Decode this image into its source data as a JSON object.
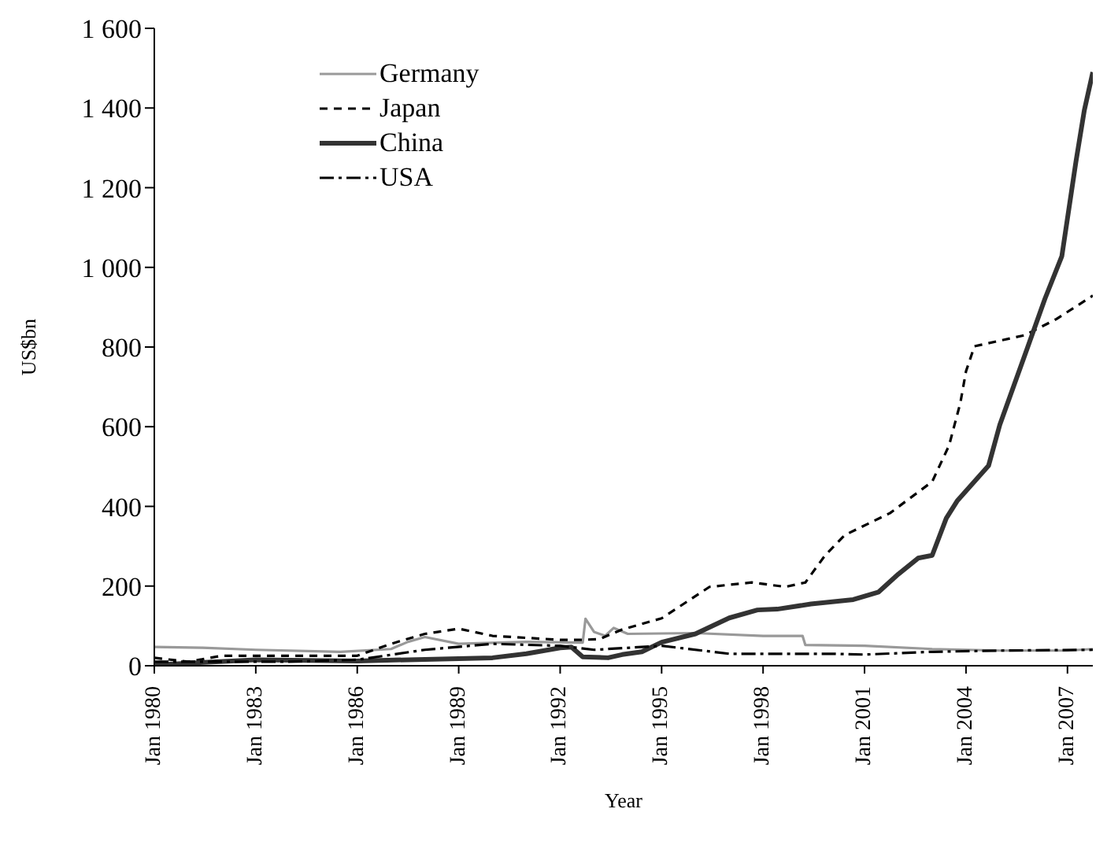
{
  "chart_data": {
    "type": "line",
    "xlabel": "Year",
    "ylabel": "US$bn",
    "xlim": [
      "1980-01",
      "2007-10"
    ],
    "xticks": [
      {
        "value": "1980-01",
        "label": "Jan 1980"
      },
      {
        "value": "1983-01",
        "label": "Jan 1983"
      },
      {
        "value": "1986-01",
        "label": "Jan 1986"
      },
      {
        "value": "1989-01",
        "label": "Jan 1989"
      },
      {
        "value": "1992-01",
        "label": "Jan 1992"
      },
      {
        "value": "1995-01",
        "label": "Jan 1995"
      },
      {
        "value": "1998-01",
        "label": "Jan 1998"
      },
      {
        "value": "2001-01",
        "label": "Jan 2001"
      },
      {
        "value": "2004-01",
        "label": "Jan 2004"
      },
      {
        "value": "2007-01",
        "label": "Jan 2007"
      }
    ],
    "ylim": [
      0,
      1600
    ],
    "yticks": [
      0,
      200,
      400,
      600,
      800,
      {
        "value": 1000,
        "label": "1 000"
      },
      {
        "value": 1200,
        "label": "1 200"
      },
      {
        "value": 1400,
        "label": "1 400"
      },
      {
        "value": 1600,
        "label": "1 600"
      }
    ],
    "grid": false,
    "legend": "top left",
    "marker": "none",
    "series": [
      {
        "name": "Germany",
        "color": "#999999",
        "line_style": "solid",
        "x": [
          "1980-01",
          "1981-06",
          "1983-01",
          "1985-07",
          "1987-01",
          "1987-07",
          "1988-01",
          "1989-01",
          "1991-01",
          "1992-09",
          "1992-10",
          "1993-01",
          "1993-05",
          "1993-08",
          "1994-01",
          "1996-01",
          "1998-01",
          "1999-03",
          "1999-04",
          "2001-01",
          "2003-01",
          "2005-01",
          "2007-01",
          "2007-10"
        ],
        "values": [
          47,
          45,
          40,
          35,
          42,
          60,
          72,
          55,
          60,
          58,
          118,
          85,
          75,
          95,
          80,
          82,
          75,
          75,
          52,
          50,
          42,
          38,
          38,
          42
        ]
      },
      {
        "name": "Japan",
        "color": "#000000",
        "line_style": "dashed",
        "x": [
          "1980-01",
          "1981-01",
          "1982-01",
          "1984-01",
          "1986-01",
          "1987-01",
          "1988-01",
          "1989-01",
          "1990-01",
          "1991-01",
          "1992-01",
          "1992-09",
          "1993-03",
          "1993-11",
          "1995-01",
          "1996-06",
          "1997-09",
          "1998-09",
          "1999-04",
          "1999-11",
          "2000-06",
          "2001-10",
          "2003-01",
          "2003-07",
          "2003-11",
          "2004-01",
          "2004-04",
          "2005-10",
          "2006-09",
          "2007-10"
        ],
        "values": [
          20,
          10,
          25,
          25,
          25,
          55,
          80,
          93,
          75,
          70,
          65,
          65,
          67,
          91,
          119,
          198,
          209,
          198,
          209,
          277,
          328,
          383,
          462,
          553,
          660,
          739,
          802,
          830,
          870,
          929
        ]
      },
      {
        "name": "China",
        "color": "#333333",
        "line_style": "solid",
        "x": [
          "1980-01",
          "1983-01",
          "1986-01",
          "1989-01",
          "1990-01",
          "1991-01",
          "1992-01",
          "1992-05",
          "1992-09",
          "1993-06",
          "1993-11",
          "1994-06",
          "1995-01",
          "1996-01",
          "1997-01",
          "1997-11",
          "1998-06",
          "1999-06",
          "2000-09",
          "2001-06",
          "2002-01",
          "2002-08",
          "2003-01",
          "2003-06",
          "2003-10",
          "2004-09",
          "2005-01",
          "2005-11",
          "2006-05",
          "2006-11",
          "2007-04",
          "2007-07",
          "2007-10"
        ],
        "values": [
          2,
          15,
          12,
          18,
          20,
          30,
          45,
          47,
          22,
          20,
          28,
          35,
          59,
          80,
          120,
          140,
          142,
          155,
          166,
          185,
          230,
          270,
          277,
          370,
          415,
          502,
          605,
          802,
          921,
          1028,
          1265,
          1395,
          1490
        ]
      },
      {
        "name": "USA",
        "color": "#000000",
        "line_style": "dashdot",
        "x": [
          "1980-01",
          "1982-01",
          "1984-01",
          "1986-01",
          "1988-01",
          "1990-01",
          "1992-01",
          "1993-01",
          "1995-01",
          "1995-07",
          "1997-01",
          "2000-01",
          "2001-01",
          "2003-01",
          "2005-01",
          "2007-10"
        ],
        "values": [
          10,
          10,
          10,
          15,
          40,
          55,
          50,
          40,
          50,
          45,
          30,
          30,
          28,
          35,
          38,
          40
        ]
      }
    ]
  }
}
